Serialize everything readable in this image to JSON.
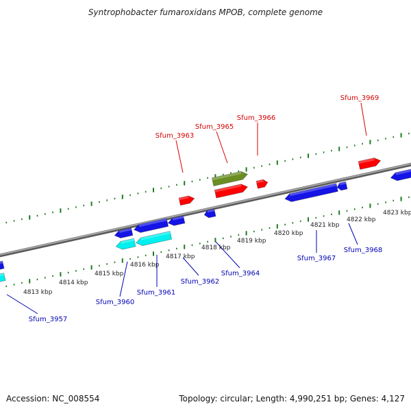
{
  "title": "Syntrophobacter fumaroxidans MPOB, complete genome",
  "footer": {
    "accession": "Accession: NC_008554",
    "topology": "Topology: circular; Length: 4,990,251 bp; Genes: 4,127"
  },
  "colors": {
    "backbone": "#8c8c8c",
    "tick": "#1a7a1a",
    "forward_label": "#d40000",
    "reverse_label": "#0000b4",
    "gene_red": "#ff0000",
    "gene_blue": "#1414e6",
    "gene_cyan": "#00f0f0",
    "gene_olive": "#6b8e23"
  },
  "ticks": [
    {
      "label": "4813 kbp"
    },
    {
      "label": "4814 kbp"
    },
    {
      "label": "4815 kbp"
    },
    {
      "label": "4816 kbp"
    },
    {
      "label": "4817 kbp"
    },
    {
      "label": "4818 kbp"
    },
    {
      "label": "4819 kbp"
    },
    {
      "label": "4820 kbp"
    },
    {
      "label": "4821 kbp"
    },
    {
      "label": "4822 kbp"
    },
    {
      "label": "4823 kbp"
    }
  ],
  "genes_forward": [
    {
      "label": "Sfum_3963",
      "color": "red"
    },
    {
      "label": "Sfum_3965",
      "color": "olive"
    },
    {
      "label": "Sfum_3966",
      "color": "red"
    },
    {
      "label": "Sfum_3969",
      "color": "red"
    }
  ],
  "genes_reverse": [
    {
      "label": "Sfum_3957",
      "color": "cyan"
    },
    {
      "label": "Sfum_3960",
      "color": "blue"
    },
    {
      "label": "Sfum_3961",
      "color": "cyan"
    },
    {
      "label": "Sfum_3962",
      "color": "blue"
    },
    {
      "label": "Sfum_3964",
      "color": "blue"
    },
    {
      "label": "Sfum_3967",
      "color": "blue"
    },
    {
      "label": "Sfum_3968",
      "color": "blue"
    }
  ]
}
